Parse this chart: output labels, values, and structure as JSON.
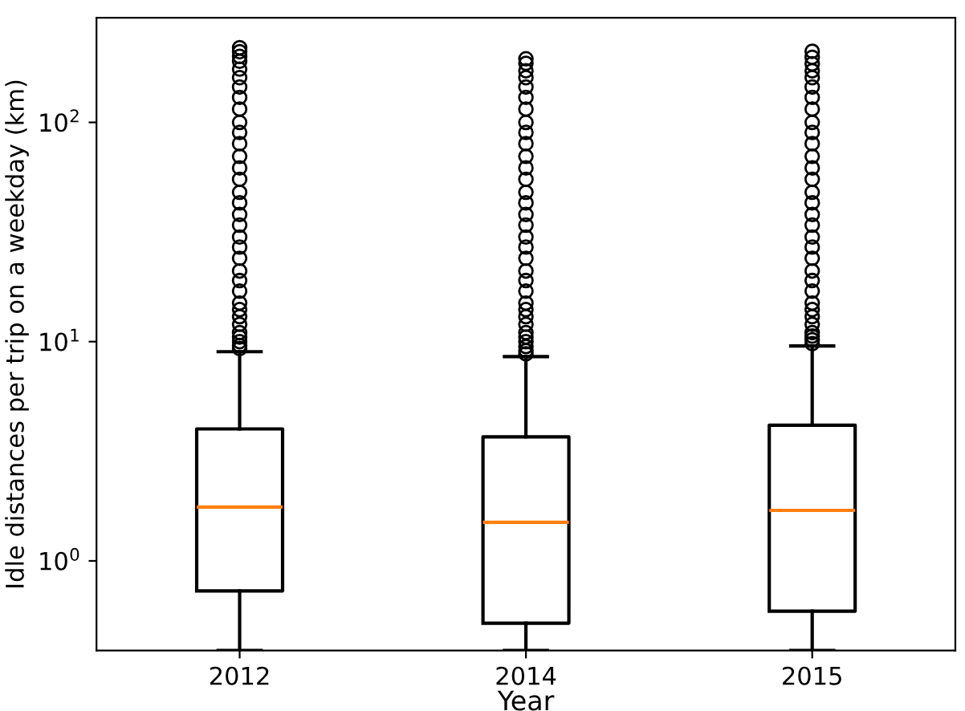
{
  "chart_data": {
    "type": "box",
    "xlabel": "Year",
    "ylabel": "Idle distances per trip on a weekday (km)",
    "categories": [
      "2012",
      "2014",
      "2015"
    ],
    "log": true,
    "ylim": [
      0.39,
      300
    ],
    "yticks": [
      {
        "value": 1,
        "label": "10$^{0}$"
      },
      {
        "value": 10,
        "label": "10$^{1}$"
      },
      {
        "value": 100,
        "label": "10$^{2}$"
      }
    ],
    "grid": false,
    "boxes": [
      {
        "low": 0.39,
        "q1": 0.73,
        "median": 1.76,
        "q3": 4.0,
        "high": 9.0,
        "outliers": [
          9.3,
          9.6,
          10,
          10.5,
          11,
          12,
          13,
          14,
          15,
          17,
          19,
          21,
          24,
          27,
          30,
          34,
          38,
          43,
          48,
          55,
          62,
          70,
          80,
          90,
          100,
          115,
          130,
          145,
          160,
          175,
          190,
          200,
          210,
          219
        ]
      },
      {
        "low": 0.39,
        "q1": 0.52,
        "median": 1.5,
        "q3": 3.68,
        "high": 8.55,
        "outliers": [
          8.8,
          9.1,
          9.5,
          10,
          10.5,
          11,
          12,
          13,
          14,
          15,
          17,
          19,
          21,
          24,
          27,
          30,
          34,
          38,
          43,
          48,
          55,
          62,
          70,
          80,
          90,
          100,
          115,
          130,
          145,
          160,
          172,
          186,
          195
        ]
      },
      {
        "low": 0.39,
        "q1": 0.59,
        "median": 1.7,
        "q3": 4.16,
        "high": 9.55,
        "outliers": [
          9.8,
          10.2,
          10.6,
          11,
          12,
          13,
          14,
          15,
          17,
          19,
          21,
          24,
          27,
          30,
          34,
          38,
          43,
          48,
          55,
          62,
          70,
          80,
          90,
          100,
          115,
          130,
          145,
          160,
          172,
          185,
          198,
          211
        ]
      }
    ]
  }
}
